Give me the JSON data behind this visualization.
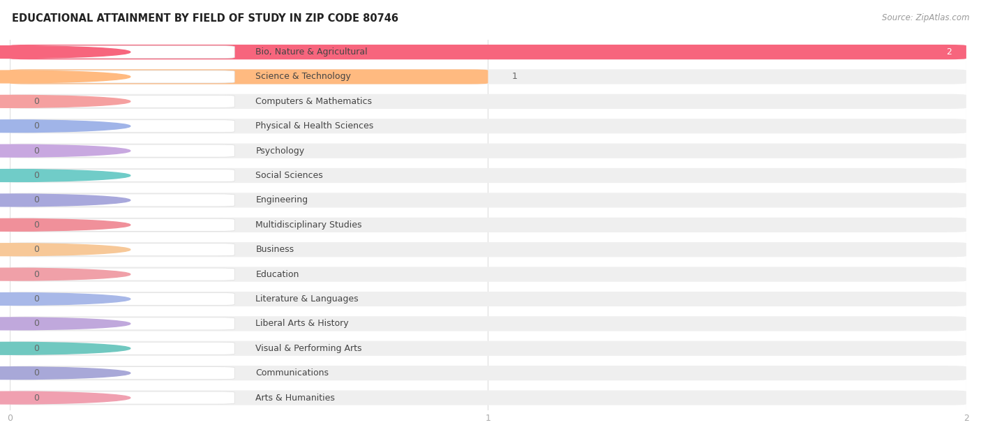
{
  "title": "EDUCATIONAL ATTAINMENT BY FIELD OF STUDY IN ZIP CODE 80746",
  "source": "Source: ZipAtlas.com",
  "categories": [
    "Bio, Nature & Agricultural",
    "Science & Technology",
    "Computers & Mathematics",
    "Physical & Health Sciences",
    "Psychology",
    "Social Sciences",
    "Engineering",
    "Multidisciplinary Studies",
    "Business",
    "Education",
    "Literature & Languages",
    "Liberal Arts & History",
    "Visual & Performing Arts",
    "Communications",
    "Arts & Humanities"
  ],
  "values": [
    2,
    1,
    0,
    0,
    0,
    0,
    0,
    0,
    0,
    0,
    0,
    0,
    0,
    0,
    0
  ],
  "bar_colors": [
    "#F7657D",
    "#FFBA80",
    "#F5A0A0",
    "#A0B4E8",
    "#C8A8E0",
    "#70CCC8",
    "#A8A8DC",
    "#F0909A",
    "#F7C898",
    "#F0A0A8",
    "#A8B8E8",
    "#C0A8DC",
    "#70C8C0",
    "#A8A8D8",
    "#F0A0B0"
  ],
  "background_bar_color": "#EFEFEF",
  "xlim_max": 2,
  "bg_color": "#FFFFFF",
  "title_fontsize": 10.5,
  "label_fontsize": 9,
  "source_fontsize": 8.5,
  "tick_fontsize": 9,
  "tick_color": "#AAAAAA",
  "label_text_color": "#444444",
  "value_label_color": "#666666",
  "grid_color": "#DDDDDD"
}
